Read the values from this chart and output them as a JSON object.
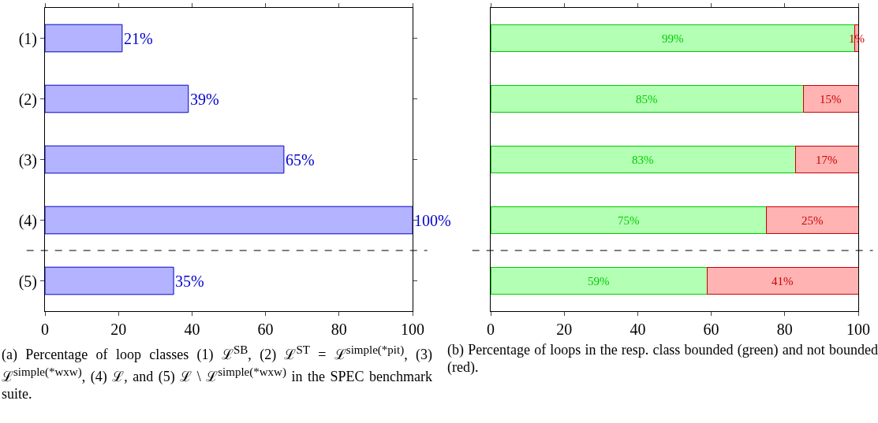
{
  "chart_data": [
    {
      "type": "bar",
      "orientation": "horizontal",
      "categories": [
        "(1)",
        "(2)",
        "(3)",
        "(4)",
        "(5)"
      ],
      "series": [
        {
          "color": "#b3b3ff",
          "values": [
            21,
            39,
            65,
            100,
            35
          ],
          "value_labels": [
            "21%",
            "39%",
            "65%",
            "100%",
            "35%"
          ]
        }
      ],
      "xlim": [
        0,
        100
      ],
      "xticks": [
        0,
        20,
        40,
        60,
        80,
        100
      ],
      "grid": false,
      "annotations": [
        "(a) Percentage of loop classes (1) ℒ$^{SB}$, (2) ℒ$^{ST}$ = ℒ$^{simple(*pit)}$, (3) ℒ$^{simple(*wxw)}$, (4) ℒ, and (5) ℒ \\ ℒ$^{simple(*wxw)}$ in the SPEC benchmark suite."
      ]
    },
    {
      "type": "bar",
      "orientation": "horizontal",
      "stacked": true,
      "categories": [
        null,
        null,
        null,
        null,
        null
      ],
      "series": [
        {
          "color": "#b3ffb3",
          "values": [
            99,
            85,
            83,
            75,
            59
          ],
          "value_labels": [
            "99%",
            "85%",
            "83%",
            "75%",
            "59%"
          ]
        },
        {
          "color": "#ffb3b3",
          "values": [
            1,
            15,
            17,
            25,
            41
          ],
          "value_labels": [
            "1%",
            "15%",
            "17%",
            "25%",
            "41%"
          ]
        }
      ],
      "xlim": [
        0,
        100
      ],
      "xticks": [
        0,
        20,
        40,
        60,
        80,
        100
      ],
      "grid": false,
      "annotations": [
        "(b) Percentage of loops in the resp. class bounded (green) and not bounded (red)."
      ]
    }
  ]
}
